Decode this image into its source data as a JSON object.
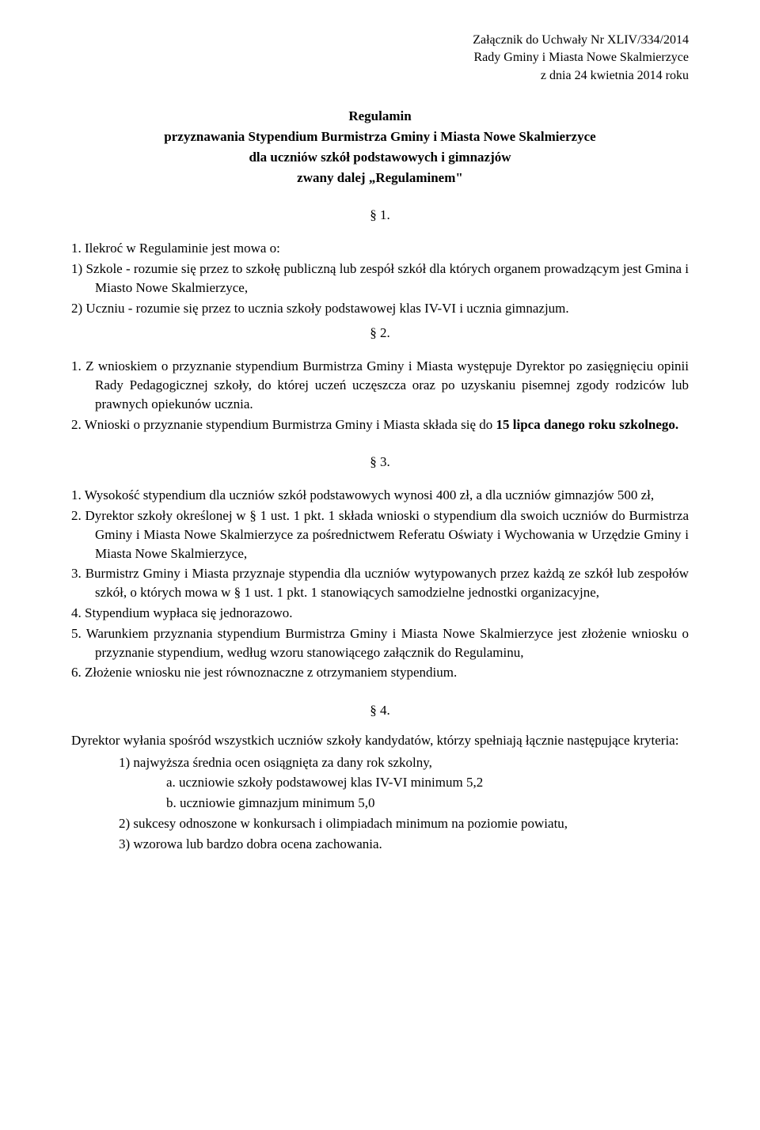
{
  "header": {
    "line1": "Załącznik do Uchwały Nr XLIV/334/2014",
    "line2": "Rady Gminy i Miasta Nowe Skalmierzyce",
    "line3": "z dnia 24 kwietnia 2014 roku"
  },
  "title": {
    "line1": "Regulamin",
    "line2": "przyznawania Stypendium Burmistrza Gminy i Miasta Nowe Skalmierzyce",
    "line3": "dla uczniów szkół podstawowych i gimnazjów",
    "line4": "zwany dalej „Regulaminem\""
  },
  "s1": {
    "marker": "§ 1.",
    "leadNum": "1.",
    "leadText": "Ilekroć w Regulaminie jest mowa o:",
    "item1Num": "1)",
    "item1Text": "Szkole - rozumie się przez to szkołę publiczną lub zespół szkół dla których organem prowadzącym jest Gmina i Miasto Nowe Skalmierzyce,",
    "item2Num": "2)",
    "item2Text": "Uczniu - rozumie się przez to ucznia szkoły podstawowej klas IV-VI i ucznia gimnazjum."
  },
  "s2": {
    "marker": "§ 2.",
    "item1Num": "1.",
    "item1Text": "Z wnioskiem o przyznanie stypendium Burmistrza Gminy i Miasta występuje Dyrektor po zasięgnięciu opinii Rady Pedagogicznej szkoły, do której uczeń uczęszcza oraz po uzyskaniu pisemnej zgody rodziców lub prawnych opiekunów ucznia.",
    "item2Num": "2.",
    "item2TextA": "Wnioski o przyznanie stypendium Burmistrza Gminy i Miasta składa się do ",
    "item2Bold": "15 lipca danego roku szkolnego."
  },
  "s3": {
    "marker": "§ 3.",
    "item1Num": "1.",
    "item1Text": "Wysokość stypendium dla uczniów szkół podstawowych wynosi 400 zł, a dla uczniów gimnazjów 500 zł,",
    "item2Num": "2.",
    "item2Text": "Dyrektor szkoły określonej w § 1 ust. 1 pkt. 1 składa wnioski o stypendium dla swoich uczniów do Burmistrza Gminy i Miasta  Nowe Skalmierzyce za pośrednictwem Referatu Oświaty i Wychowania w Urzędzie Gminy i Miasta Nowe Skalmierzyce,",
    "item3Num": "3.",
    "item3Text": "Burmistrz Gminy i Miasta przyznaje stypendia dla uczniów wytypowanych przez każdą ze szkół lub zespołów szkół, o których mowa w § 1 ust. 1 pkt. 1 stanowiących samodzielne jednostki organizacyjne,",
    "item4Num": "4.",
    "item4Text": "Stypendium wypłaca się jednorazowo.",
    "item5Num": "5.",
    "item5Text": "Warunkiem przyznania stypendium Burmistrza Gminy i Miasta Nowe Skalmierzyce jest złożenie wniosku o przyznanie stypendium, według wzoru stanowiącego załącznik do Regulaminu,",
    "item6Num": "6.",
    "item6Text": "Złożenie wniosku nie jest równoznaczne z otrzymaniem stypendium."
  },
  "s4": {
    "marker": "§ 4.",
    "lead": "Dyrektor wyłania spośród wszystkich uczniów szkoły kandydatów, którzy spełniają łącznie następujące kryteria:",
    "item1Num": "1)",
    "item1Text": "najwyższa średnia ocen osiągnięta za dany rok szkolny,",
    "letterANum": "a.",
    "letterAText": "uczniowie szkoły podstawowej klas IV-VI  minimum  5,2",
    "letterBNum": "b.",
    "letterBText": "uczniowie gimnazjum minimum  5,0",
    "item2Num": "2)",
    "item2Text": "sukcesy odnoszone w konkursach i olimpiadach minimum na poziomie powiatu,",
    "item3Num": "3)",
    "item3Text": "wzorowa lub bardzo dobra ocena zachowania."
  }
}
